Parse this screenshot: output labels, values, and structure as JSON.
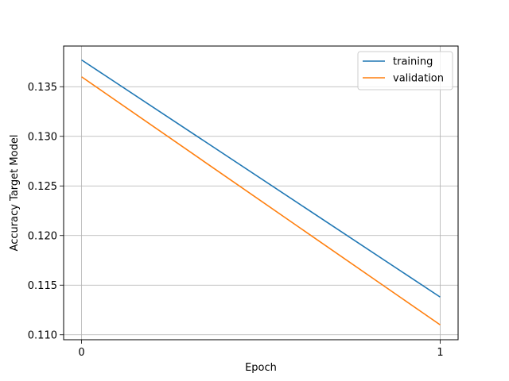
{
  "chart_data": {
    "type": "line",
    "title": "",
    "xlabel": "Epoch",
    "ylabel": "Accuracy Target Model",
    "x": [
      0,
      1
    ],
    "xlim": [
      -0.05,
      1.05
    ],
    "ylim": [
      0.1095,
      0.1391
    ],
    "xticks": [
      0,
      1
    ],
    "xtick_labels": [
      "0",
      "1"
    ],
    "yticks": [
      0.11,
      0.115,
      0.12,
      0.125,
      0.13,
      0.135
    ],
    "ytick_labels": [
      "0.110",
      "0.115",
      "0.120",
      "0.125",
      "0.130",
      "0.135"
    ],
    "grid": true,
    "legend_position": "top-right",
    "series": [
      {
        "name": "training",
        "color": "#1f77b4",
        "values": [
          0.1377,
          0.1138
        ]
      },
      {
        "name": "validation",
        "color": "#ff7f0e",
        "values": [
          0.136,
          0.111
        ]
      }
    ]
  }
}
